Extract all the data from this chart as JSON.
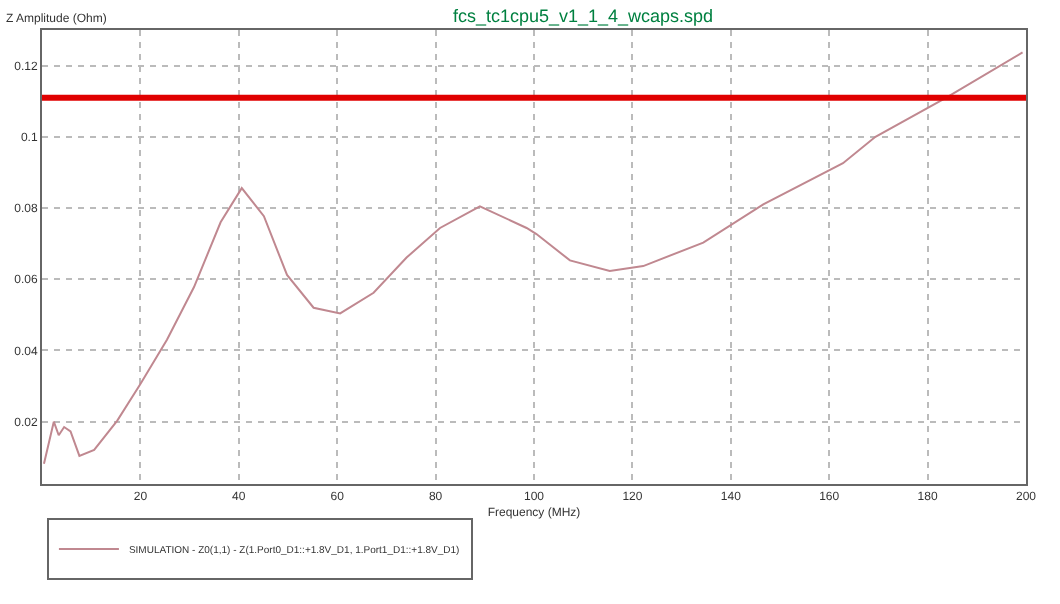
{
  "chart_data": {
    "type": "line",
    "title": "fcs_tc1cpu5_v1_1_4_wcaps.spd",
    "xlabel": "Frequency (MHz)",
    "ylabel": "Z Amplitude (Ohm)",
    "x": [
      0.4,
      2.4,
      3.4,
      4.5,
      5.8,
      7.6,
      10.6,
      15.3,
      20,
      25.4,
      30.9,
      36.3,
      40.6,
      45.1,
      49.8,
      55.2,
      60.6,
      67.4,
      74.1,
      80.9,
      89,
      98.5,
      100.5,
      107.3,
      115.4,
      122.2,
      134.4,
      146.6,
      162.8,
      169.4,
      183.8,
      199.3
    ],
    "series": [
      {
        "name": "SIMULATION - Z0(1,1) - Z(1.Port0_D1::+1.8V_D1, 1.Port1_D1::+1.8V_D1)",
        "color": "#c08890",
        "values": [
          0.0082,
          0.02,
          0.0162,
          0.0185,
          0.0173,
          0.0104,
          0.0121,
          0.0203,
          0.0306,
          0.043,
          0.0578,
          0.076,
          0.0856,
          0.0777,
          0.0612,
          0.052,
          0.0504,
          0.0562,
          0.0661,
          0.0744,
          0.0805,
          0.0744,
          0.0727,
          0.0653,
          0.0623,
          0.0637,
          0.0703,
          0.081,
          0.0926,
          0.1,
          0.111,
          0.1237
        ]
      }
    ],
    "xlim": [
      0,
      200
    ],
    "xticks": [
      20,
      40,
      60,
      80,
      100,
      120,
      140,
      160,
      180,
      200
    ],
    "ylim": [
      0.0025,
      0.13
    ],
    "yticks": [
      0.02,
      0.04,
      0.06,
      0.08,
      0.1,
      0.12
    ],
    "ref_lines": [
      {
        "axis": "y",
        "value": 0.111,
        "color": "#e00000"
      }
    ],
    "grid": true,
    "legend": "bottom",
    "marker": "none",
    "line_style": "solid"
  }
}
